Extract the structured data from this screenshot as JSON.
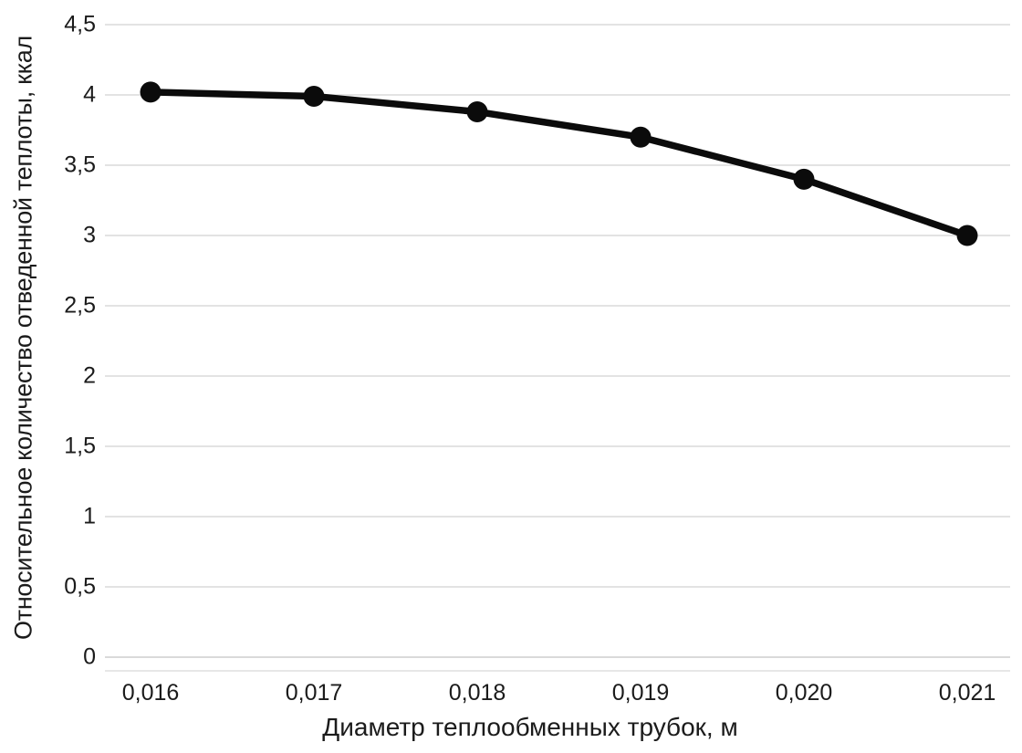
{
  "chart_data": {
    "type": "line",
    "title": "",
    "xlabel": "Диаметр теплообменных трубок, м",
    "ylabel": "Относительное количество отведенной теплоты, ккал",
    "categories": [
      "0,016",
      "0,017",
      "0,018",
      "0,019",
      "0,020",
      "0,021"
    ],
    "x_values": [
      0.016,
      0.017,
      0.018,
      0.019,
      0.02,
      0.021
    ],
    "series": [
      {
        "name": "Относительное количество отведенной теплоты, ккал",
        "values": [
          4.02,
          3.99,
          3.88,
          3.7,
          3.4,
          3.0
        ]
      }
    ],
    "ylim": [
      0,
      4.5
    ],
    "y_ticks": [
      {
        "label": "0",
        "value": 0
      },
      {
        "label": "0,5",
        "value": 0.5
      },
      {
        "label": "1",
        "value": 1
      },
      {
        "label": "1,5",
        "value": 1.5
      },
      {
        "label": "2",
        "value": 2
      },
      {
        "label": "2,5",
        "value": 2.5
      },
      {
        "label": "3",
        "value": 3
      },
      {
        "label": "3,5",
        "value": 3.5
      },
      {
        "label": "4",
        "value": 4
      },
      {
        "label": "4,5",
        "value": 4.5
      }
    ],
    "grid": "horizontal",
    "legend": "none",
    "marker": "circle",
    "line_color": "#0b0b0b",
    "marker_color": "#0b0b0b",
    "grid_color": "#e3e3e3",
    "zero_line_color": "#dadada",
    "axis_line_color": "#e7e7e7",
    "text_color": "#1b1b1b",
    "background_color": "#ffffff"
  }
}
